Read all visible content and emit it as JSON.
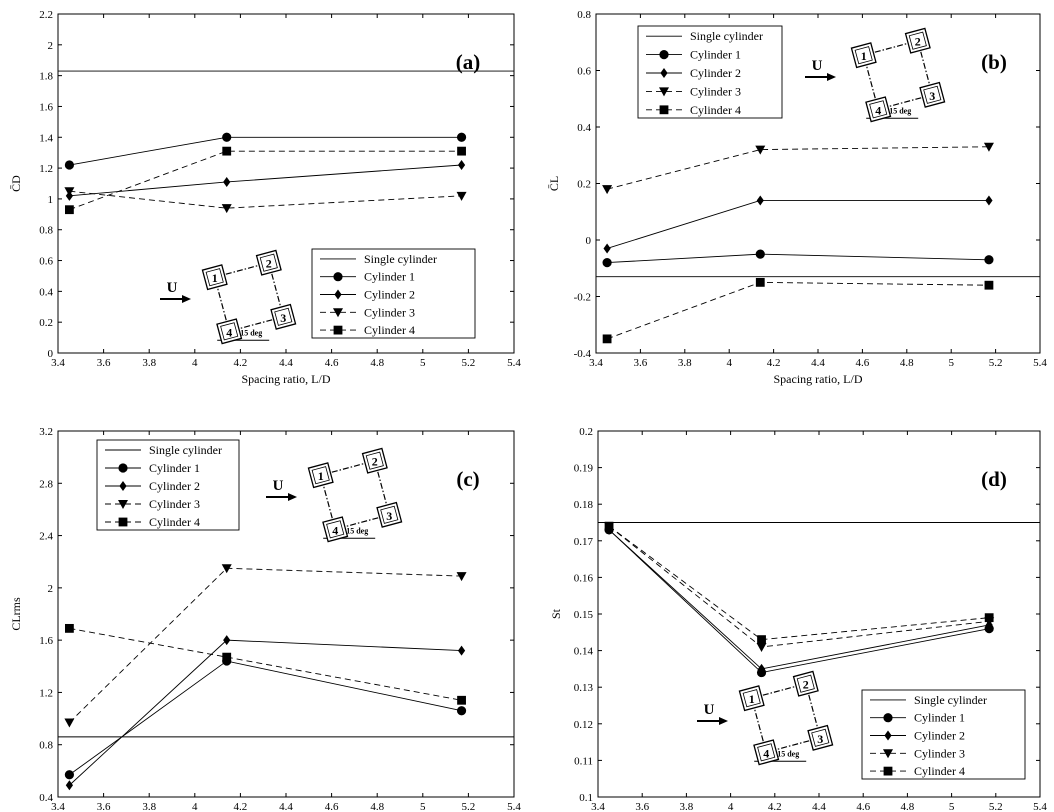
{
  "chart_data": [
    {
      "type": "line",
      "panel_label": "(a)",
      "xlabel": "Spacing ratio, L/D",
      "ylabel": "C̄D",
      "xlim": [
        3.4,
        5.4
      ],
      "ylim": [
        0,
        2.2
      ],
      "xticks": [
        "3.4",
        "3.6",
        "3.8",
        "4",
        "4.2",
        "4.4",
        "4.6",
        "4.8",
        "5",
        "5.2",
        "5.4"
      ],
      "yticks": [
        "0",
        "0.2",
        "0.4",
        "0.6",
        "0.8",
        "1",
        "1.2",
        "1.4",
        "1.6",
        "1.8",
        "2",
        "2.2"
      ],
      "x": [
        3.45,
        4.14,
        5.17
      ],
      "reference": {
        "name": "Single cylinder",
        "value": 1.83
      },
      "series": [
        {
          "name": "Cylinder 1",
          "marker": "circle",
          "dash": "solid",
          "values": [
            1.22,
            1.4,
            1.4
          ]
        },
        {
          "name": "Cylinder 2",
          "marker": "diamond",
          "dash": "solid",
          "values": [
            1.02,
            1.11,
            1.22
          ]
        },
        {
          "name": "Cylinder 3",
          "marker": "triangle-down",
          "dash": "dashed",
          "values": [
            1.05,
            0.94,
            1.02
          ]
        },
        {
          "name": "Cylinder 4",
          "marker": "square",
          "dash": "dashed",
          "values": [
            0.93,
            1.31,
            1.31
          ]
        }
      ],
      "legend": "bottom-right",
      "diagram": {
        "flow_label": "U",
        "angle_label": "15 deg",
        "cylinders": [
          "1",
          "2",
          "3",
          "4"
        ]
      }
    },
    {
      "type": "line",
      "panel_label": "(b)",
      "xlabel": "Spacing ratio, L/D",
      "ylabel": "C̄L",
      "xlim": [
        3.4,
        5.4
      ],
      "ylim": [
        -0.4,
        0.8
      ],
      "xticks": [
        "3.4",
        "3.6",
        "3.8",
        "4",
        "4.2",
        "4.4",
        "4.6",
        "4.8",
        "5",
        "5.2",
        "5.4"
      ],
      "yticks": [
        "-0.4",
        "-0.2",
        "0",
        "0.2",
        "0.4",
        "0.6",
        "0.8"
      ],
      "x": [
        3.45,
        4.14,
        5.17
      ],
      "reference": {
        "name": "Single cylinder",
        "value": -0.13
      },
      "series": [
        {
          "name": "Cylinder 1",
          "marker": "circle",
          "dash": "solid",
          "values": [
            -0.08,
            -0.05,
            -0.07
          ]
        },
        {
          "name": "Cylinder 2",
          "marker": "diamond",
          "dash": "solid",
          "values": [
            -0.03,
            0.14,
            0.14
          ]
        },
        {
          "name": "Cylinder 3",
          "marker": "triangle-down",
          "dash": "dashed",
          "values": [
            0.18,
            0.32,
            0.33
          ]
        },
        {
          "name": "Cylinder 4",
          "marker": "square",
          "dash": "dashed",
          "values": [
            -0.35,
            -0.15,
            -0.16
          ]
        }
      ],
      "legend": "top-left",
      "diagram": {
        "flow_label": "U",
        "angle_label": "15 deg",
        "cylinders": [
          "1",
          "2",
          "3",
          "4"
        ]
      }
    },
    {
      "type": "line",
      "panel_label": "(c)",
      "xlabel": "Spacing ratio, L/D",
      "ylabel": "CLrms",
      "xlim": [
        3.4,
        5.4
      ],
      "ylim": [
        0.4,
        3.2
      ],
      "xticks": [
        "3.4",
        "3.6",
        "3.8",
        "4",
        "4.2",
        "4.4",
        "4.6",
        "4.8",
        "5",
        "5.2",
        "5.4"
      ],
      "yticks": [
        "0.4",
        "0.8",
        "1.2",
        "1.6",
        "2",
        "2.4",
        "2.8",
        "3.2"
      ],
      "x": [
        3.45,
        4.14,
        5.17
      ],
      "reference": {
        "name": "Single cylinder",
        "value": 0.86
      },
      "series": [
        {
          "name": "Cylinder 1",
          "marker": "circle",
          "dash": "solid",
          "values": [
            0.57,
            1.44,
            1.06
          ]
        },
        {
          "name": "Cylinder 2",
          "marker": "diamond",
          "dash": "solid",
          "values": [
            0.49,
            1.6,
            1.52
          ]
        },
        {
          "name": "Cylinder 3",
          "marker": "triangle-down",
          "dash": "dashed",
          "values": [
            0.97,
            2.15,
            2.09
          ]
        },
        {
          "name": "Cylinder 4",
          "marker": "square",
          "dash": "dashed",
          "values": [
            1.69,
            1.47,
            1.14
          ]
        }
      ],
      "legend": "top-left",
      "diagram": {
        "flow_label": "U",
        "angle_label": "15 deg",
        "cylinders": [
          "1",
          "2",
          "3",
          "4"
        ]
      }
    },
    {
      "type": "line",
      "panel_label": "(d)",
      "xlabel": "Spacing ratio, L/D",
      "ylabel": "St",
      "xlim": [
        3.4,
        5.4
      ],
      "ylim": [
        0.1,
        0.2
      ],
      "xticks": [
        "3.4",
        "3.6",
        "3.8",
        "4",
        "4.2",
        "4.4",
        "4.6",
        "4.8",
        "5",
        "5.2",
        "5.4"
      ],
      "yticks": [
        "0.1",
        "0.11",
        "0.12",
        "0.13",
        "0.14",
        "0.15",
        "0.16",
        "0.17",
        "0.18",
        "0.19",
        "0.2"
      ],
      "x": [
        3.45,
        4.14,
        5.17
      ],
      "reference": {
        "name": "Single cylinder",
        "value": 0.175
      },
      "series": [
        {
          "name": "Cylinder 1",
          "marker": "circle",
          "dash": "solid",
          "values": [
            0.173,
            0.134,
            0.146
          ]
        },
        {
          "name": "Cylinder 2",
          "marker": "diamond",
          "dash": "solid",
          "values": [
            0.173,
            0.135,
            0.147
          ]
        },
        {
          "name": "Cylinder 3",
          "marker": "triangle-down",
          "dash": "dashed",
          "values": [
            0.174,
            0.141,
            0.148
          ]
        },
        {
          "name": "Cylinder 4",
          "marker": "square",
          "dash": "dashed",
          "values": [
            0.174,
            0.143,
            0.149
          ]
        }
      ],
      "legend": "bottom-right",
      "diagram": {
        "flow_label": "U",
        "angle_label": "15 deg",
        "cylinders": [
          "1",
          "2",
          "3",
          "4"
        ]
      }
    }
  ]
}
